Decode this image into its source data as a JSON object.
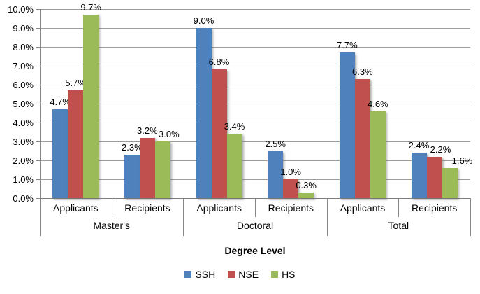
{
  "chart_data": {
    "type": "bar",
    "title": "",
    "xlabel": "Degree Level",
    "ylabel": "",
    "ylim": [
      0,
      10
    ],
    "ytick_step": 1.0,
    "grid": true,
    "legend_position": "bottom",
    "ytick_labels": [
      "0.0%",
      "1.0%",
      "2.0%",
      "3.0%",
      "4.0%",
      "5.0%",
      "6.0%",
      "7.0%",
      "8.0%",
      "9.0%",
      "10.0%"
    ],
    "groups": [
      {
        "label": "Master's",
        "categories": [
          "Applicants",
          "Recipients"
        ]
      },
      {
        "label": "Doctoral",
        "categories": [
          "Applicants",
          "Recipients"
        ]
      },
      {
        "label": "Total",
        "categories": [
          "Applicants",
          "Recipients"
        ]
      }
    ],
    "series": [
      {
        "name": "SSH",
        "color": "#4F81BD",
        "values": [
          4.7,
          2.3,
          9.0,
          2.5,
          7.7,
          2.4
        ],
        "labels": [
          "4.7%",
          "2.3%",
          "9.0%",
          "2.5%",
          "7.7%",
          "2.4%"
        ]
      },
      {
        "name": "NSE",
        "color": "#C0504D",
        "values": [
          5.7,
          3.2,
          6.8,
          1.0,
          6.3,
          2.2
        ],
        "labels": [
          "5.7%",
          "3.2%",
          "6.8%",
          "1.0%",
          "6.3%",
          "2.2%"
        ]
      },
      {
        "name": "HS",
        "color": "#9BBB59",
        "values": [
          9.7,
          3.0,
          3.4,
          0.3,
          4.6,
          1.6
        ],
        "labels": [
          "9.7%",
          "3.0%",
          "3.4%",
          "0.3%",
          "4.6%",
          "1.6%"
        ]
      }
    ]
  },
  "colors": {
    "background": "#FFFFFF",
    "gridline": "#9D9D9D",
    "axis": "#7F7F7F",
    "text": "#000000"
  }
}
